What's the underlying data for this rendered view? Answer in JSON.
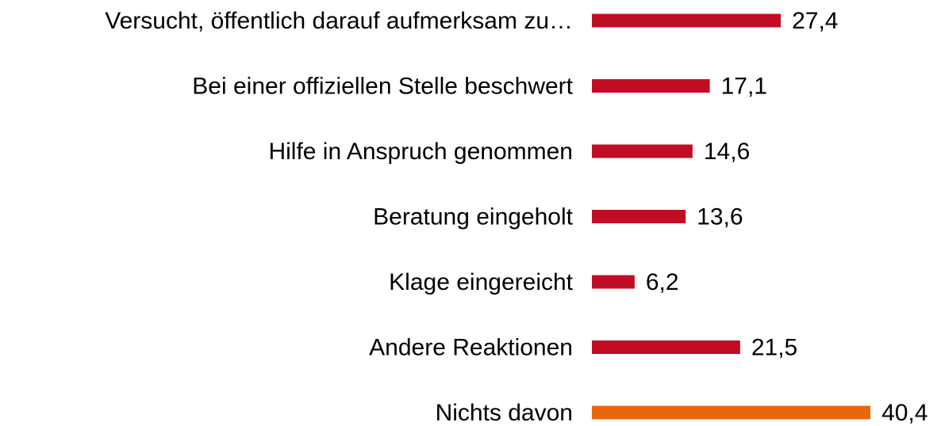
{
  "chart_data": {
    "type": "barh",
    "categories": [
      "Versucht, öffentlich darauf aufmerksam zu…",
      "Bei einer offiziellen Stelle beschwert",
      "Hilfe in Anspruch genommen",
      "Beratung eingeholt",
      "Klage eingereicht",
      "Andere Reaktionen",
      "Nichts davon"
    ],
    "values": [
      27.4,
      17.1,
      14.6,
      13.6,
      6.2,
      21.5,
      40.4
    ],
    "value_labels": [
      "27,4",
      "17,1",
      "14,6",
      "13,6",
      "6,2",
      "21,5",
      "40,4"
    ],
    "colors": [
      "#c00d24",
      "#c00d24",
      "#c00d24",
      "#c00d24",
      "#c00d24",
      "#c00d24",
      "#e8670c"
    ]
  }
}
